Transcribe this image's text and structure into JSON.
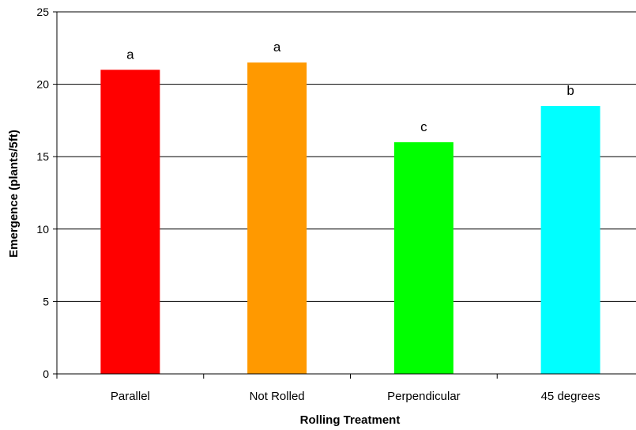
{
  "chart_data": {
    "type": "bar",
    "title": "",
    "xlabel": "Rolling Treatment",
    "ylabel": "Emergence (plants/5ft)",
    "categories": [
      "Parallel",
      "Not Rolled",
      "Perpendicular",
      "45 degrees"
    ],
    "values": [
      21.0,
      21.5,
      16.0,
      18.5
    ],
    "letters": [
      "a",
      "a",
      "c",
      "b"
    ],
    "colors": [
      "#ff0000",
      "#ff9900",
      "#00ff00",
      "#00ffff"
    ],
    "ylim": [
      0,
      25
    ],
    "yticks": [
      "0",
      "5",
      "10",
      "15",
      "20",
      "25"
    ],
    "grid": true,
    "legend": "none"
  }
}
